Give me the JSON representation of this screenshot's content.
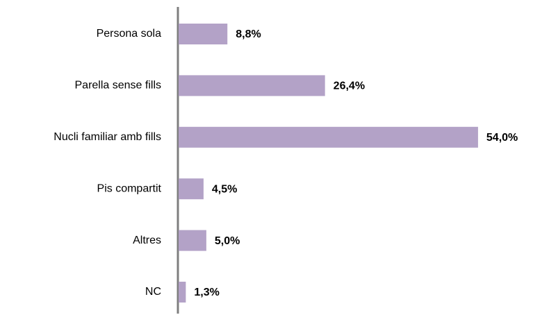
{
  "chart_data": {
    "type": "hbar",
    "categories": [
      "Persona sola",
      "Parella sense fills",
      "Nucli familiar amb fills",
      "Pis compartit",
      "Altres",
      "NC"
    ],
    "values": [
      8.8,
      26.4,
      54.0,
      4.5,
      5.0,
      1.3
    ],
    "value_labels": [
      "8,8%",
      "26,4%",
      "54,0%",
      "4,5%",
      "5,0%",
      "1,3%"
    ],
    "color": "#b3a2c7"
  }
}
